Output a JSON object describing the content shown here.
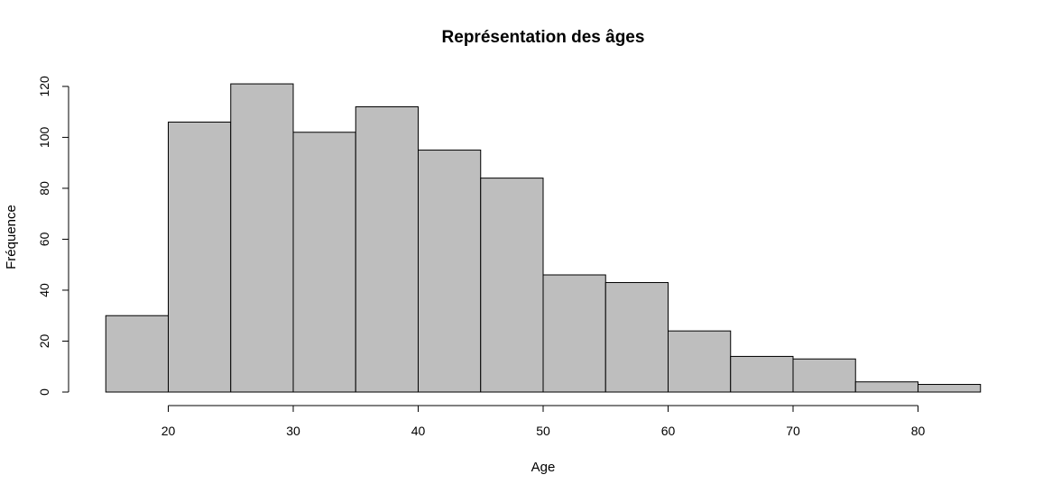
{
  "chart_data": {
    "type": "bar",
    "title": "Représentation des âges",
    "xlabel": "Age",
    "ylabel": "Fréquence",
    "bins": [
      [
        15,
        20
      ],
      [
        20,
        25
      ],
      [
        25,
        30
      ],
      [
        30,
        35
      ],
      [
        35,
        40
      ],
      [
        40,
        45
      ],
      [
        45,
        50
      ],
      [
        50,
        55
      ],
      [
        55,
        60
      ],
      [
        60,
        65
      ],
      [
        65,
        70
      ],
      [
        70,
        75
      ],
      [
        75,
        80
      ],
      [
        80,
        85
      ]
    ],
    "values": [
      30,
      106,
      121,
      102,
      112,
      95,
      84,
      46,
      43,
      24,
      14,
      13,
      4,
      3
    ],
    "xticks": [
      20,
      30,
      40,
      50,
      60,
      70,
      80
    ],
    "yticks": [
      0,
      20,
      40,
      60,
      80,
      100,
      120
    ],
    "xlim": [
      15,
      85
    ],
    "ylim": [
      0,
      121
    ],
    "grid": false,
    "legend": "none",
    "bar_color": "#bebebe"
  }
}
